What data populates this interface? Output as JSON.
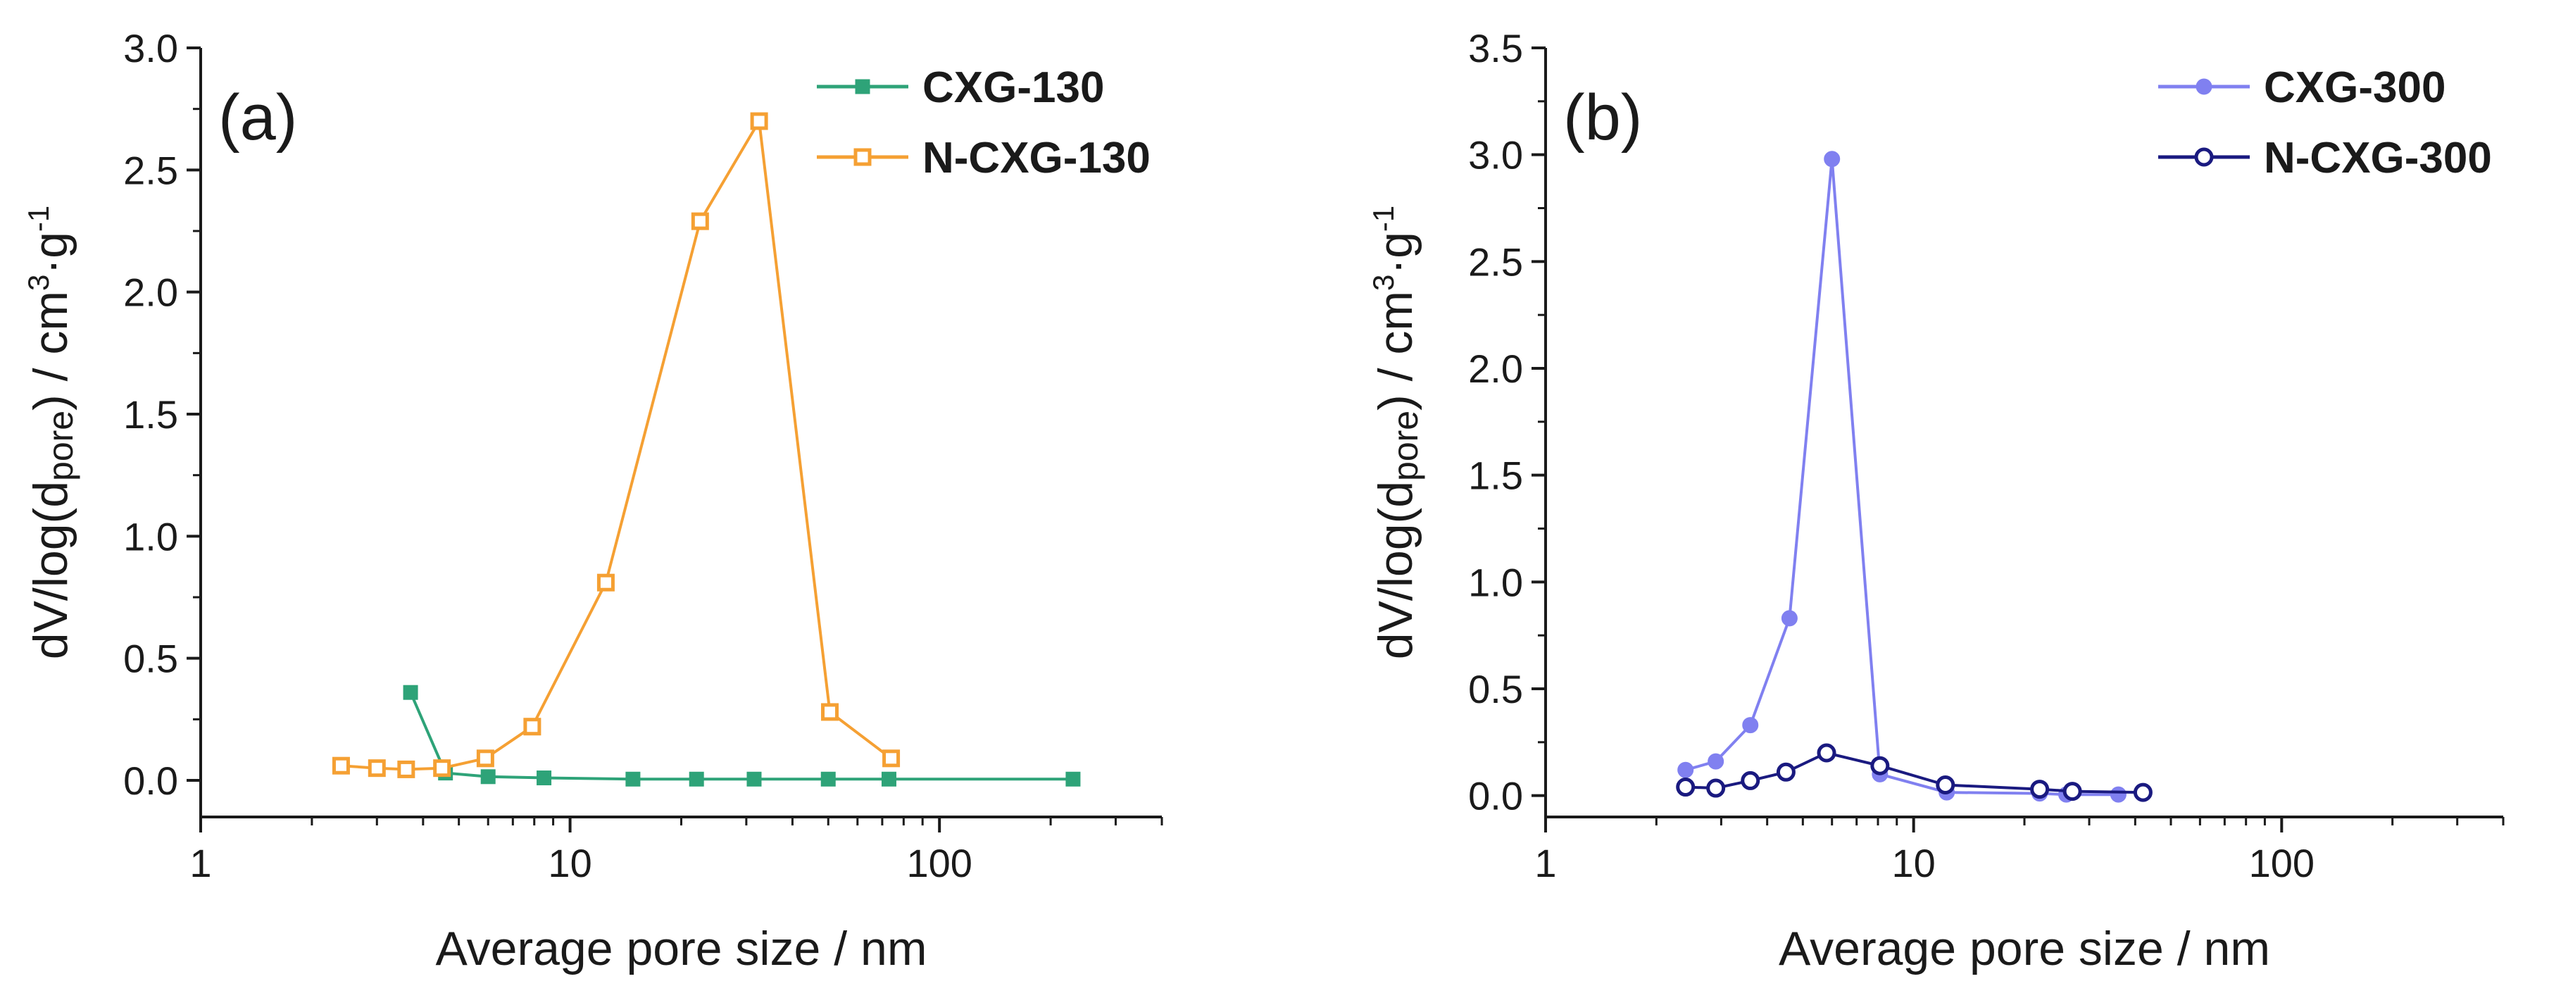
{
  "chart_data": [
    {
      "type": "line",
      "panel_label": "(a)",
      "xlabel": "Average pore size / nm",
      "ylabel_parts": [
        "dV/log(d",
        "pore",
        ") / cm",
        "3",
        "·g",
        "-1"
      ],
      "xscale": "log",
      "xlim": [
        1,
        400
      ],
      "ylim": [
        -0.15,
        3.0
      ],
      "xticks": [
        1,
        10,
        100
      ],
      "xtick_labels": [
        "1",
        "10",
        "100"
      ],
      "yticks": [
        0.0,
        0.5,
        1.0,
        1.5,
        2.0,
        2.5,
        3.0
      ],
      "ytick_labels": [
        "0.0",
        "0.5",
        "1.0",
        "1.5",
        "2.0",
        "2.5",
        "3.0"
      ],
      "legend_position": "top-right",
      "series": [
        {
          "name": "CXG-130",
          "color": "#2ea378",
          "marker": "filled-square",
          "x": [
            3.7,
            4.6,
            6.0,
            8.5,
            14.8,
            22.0,
            31.5,
            50.0,
            73.0,
            230.0
          ],
          "y": [
            0.36,
            0.03,
            0.015,
            0.01,
            0.005,
            0.005,
            0.005,
            0.005,
            0.005,
            0.005
          ]
        },
        {
          "name": "N-CXG-130",
          "color": "#f5a033",
          "marker": "open-square",
          "x": [
            2.4,
            3.0,
            3.6,
            4.5,
            5.9,
            7.9,
            12.5,
            22.5,
            32.5,
            50.5,
            74.0
          ],
          "y": [
            0.06,
            0.05,
            0.045,
            0.05,
            0.09,
            0.22,
            0.81,
            2.29,
            2.7,
            0.28,
            0.09
          ]
        }
      ]
    },
    {
      "type": "line",
      "panel_label": "(b)",
      "xlabel": "Average pore size / nm",
      "ylabel_parts": [
        "dV/log(d",
        "pore",
        ") / cm",
        "3",
        "·g",
        "-1"
      ],
      "xscale": "log",
      "xlim": [
        1,
        400
      ],
      "ylim": [
        -0.1,
        3.5
      ],
      "xticks": [
        1,
        10,
        100
      ],
      "xtick_labels": [
        "1",
        "10",
        "100"
      ],
      "yticks": [
        0.0,
        0.5,
        1.0,
        1.5,
        2.0,
        2.5,
        3.0,
        3.5
      ],
      "ytick_labels": [
        "0.0",
        "0.5",
        "1.0",
        "1.5",
        "2.0",
        "2.5",
        "3.0",
        "3.5"
      ],
      "legend_position": "top-right",
      "series": [
        {
          "name": "CXG-300",
          "color": "#8080f0",
          "marker": "filled-circle",
          "x": [
            2.4,
            2.9,
            3.6,
            4.6,
            6.0,
            8.1,
            12.3,
            22.0,
            26.0,
            36.0
          ],
          "y": [
            0.12,
            0.16,
            0.33,
            0.83,
            2.98,
            0.1,
            0.015,
            0.01,
            0.005,
            0.005
          ]
        },
        {
          "name": "N-CXG-300",
          "color": "#1a1a80",
          "marker": "open-circle",
          "x": [
            2.4,
            2.9,
            3.6,
            4.5,
            5.8,
            8.1,
            12.2,
            22.0,
            27.0,
            42.0
          ],
          "y": [
            0.04,
            0.035,
            0.07,
            0.11,
            0.2,
            0.14,
            0.05,
            0.03,
            0.02,
            0.015
          ]
        }
      ]
    }
  ]
}
